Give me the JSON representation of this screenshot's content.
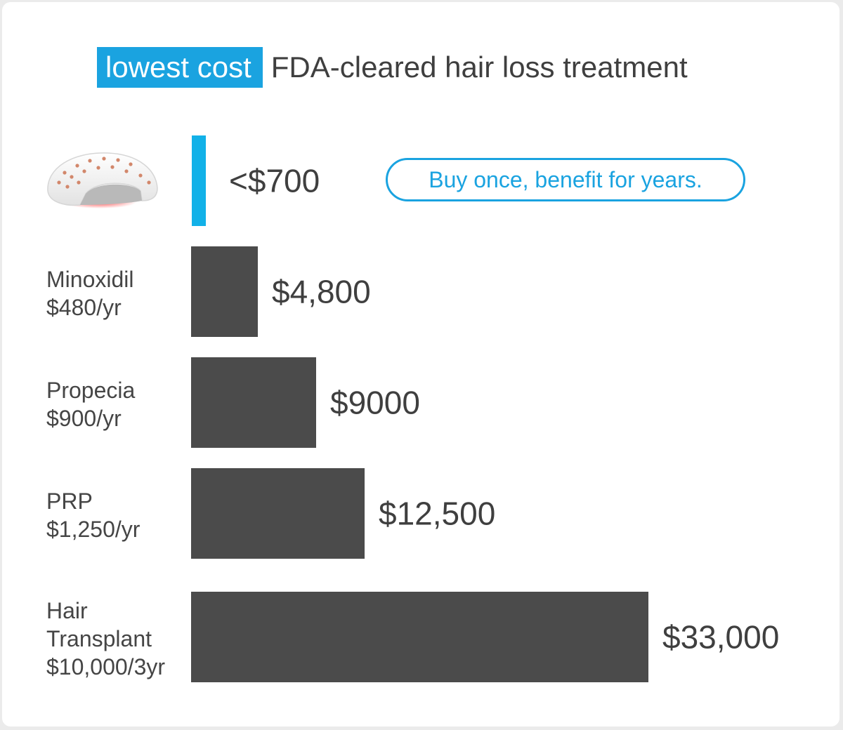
{
  "headline": {
    "highlight": "lowest cost",
    "rest": "FDA-cleared hair loss treatment"
  },
  "callout": "Buy once, benefit for years.",
  "colors": {
    "accent": "#1aa3e0",
    "bar_accent": "#12b1e8",
    "bar": "#4b4b4b",
    "text": "#3f3f3f"
  },
  "icons": {
    "product": "laser-cap-helmet-icon"
  },
  "chart_data": {
    "type": "bar",
    "orientation": "horizontal",
    "title": "lowest cost FDA-cleared hair loss treatment",
    "categories": [
      {
        "name": [],
        "sub": ""
      },
      {
        "name": [
          "Minoxidil"
        ],
        "sub": "$480/yr"
      },
      {
        "name": [
          "Propecia"
        ],
        "sub": "$900/yr"
      },
      {
        "name": [
          "PRP"
        ],
        "sub": "$1,250/yr"
      },
      {
        "name": [
          "Hair",
          "Transplant"
        ],
        "sub": "$10,000/3yr"
      }
    ],
    "values": [
      700,
      4800,
      9000,
      12500,
      33000
    ],
    "value_labels": [
      "<$700",
      "$4,800",
      "$9000",
      "$12,500",
      "$33,000"
    ],
    "xlim": [
      0,
      33000
    ],
    "grid": false,
    "legend": "none"
  }
}
